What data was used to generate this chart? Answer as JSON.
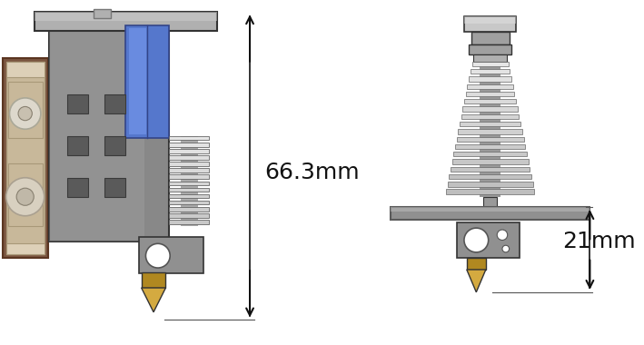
{
  "bg_color": "#ffffff",
  "left_dim_label": "66.3mm",
  "right_dim_label": "21mm",
  "dim_fontsize": 18,
  "arrow_color": "#111111",
  "line_color": "#555555",
  "colors": {
    "body_gray": "#888888",
    "body_gray_dark": "#6a6a6a",
    "body_gray_light": "#aaaaaa",
    "top_plate": "#b0b0b0",
    "top_plate_dark": "#808080",
    "extruder_tan": "#c8b89a",
    "extruder_tan_dark": "#a09080",
    "extruder_brown": "#7a5540",
    "extruder_brown_dark": "#5a3520",
    "blue1": "#5577cc",
    "blue2": "#7799ee",
    "blue_dark": "#334488",
    "fin_light": "#d5d5d5",
    "fin_mid": "#aaaaaa",
    "fin_dark": "#666666",
    "fin_core": "#999999",
    "brass": "#b08820",
    "brass_dark": "#8a6810",
    "brass_light": "#d4aa40",
    "heater_gray": "#909090",
    "heater_dark": "#606060",
    "mount_plate": "#909090",
    "mount_plate_dark": "#5a5a5a",
    "bolt_top": "#c8c8c8",
    "bolt_mid": "#a0a0a0",
    "outline": "#333333",
    "screw_gray": "#b0b0b0",
    "screw_dark": "#777777",
    "tan_light": "#ddd0b8",
    "tan_shadow": "#a89878"
  }
}
